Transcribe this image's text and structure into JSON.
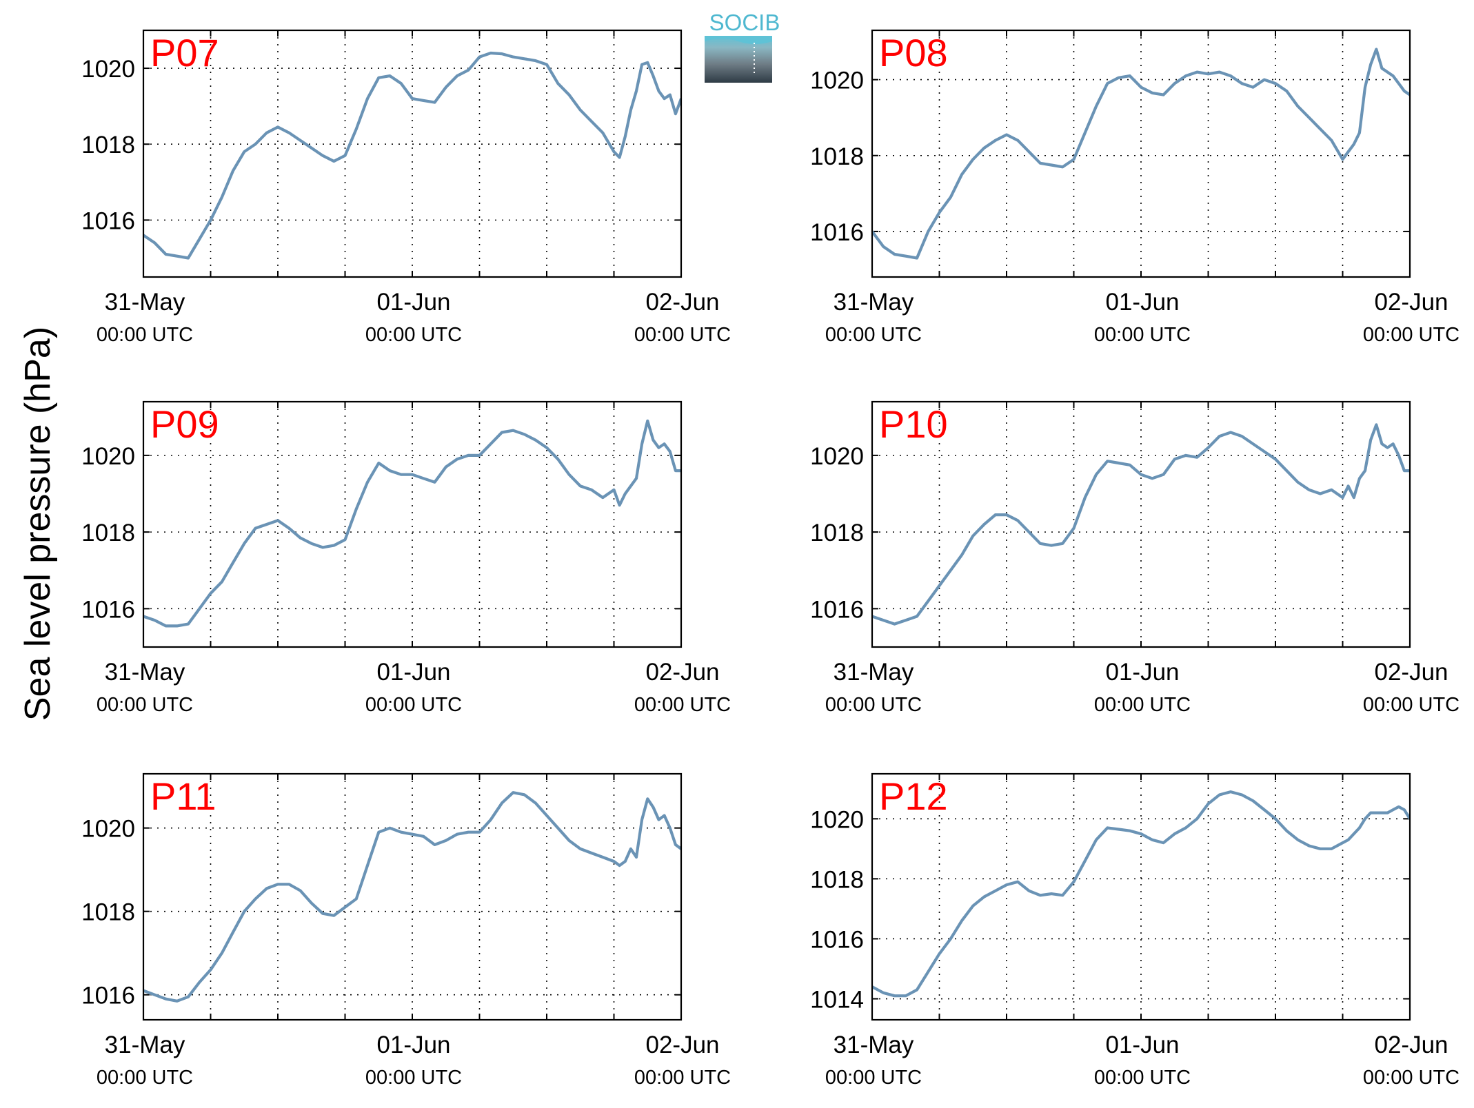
{
  "figure": {
    "ylabel": "Sea level pressure (hPa)",
    "logo_text": "SOCIB",
    "line_color": "#6a93b5",
    "label_color": "#ff0000"
  },
  "chart_data": [
    {
      "type": "line",
      "title": "P07",
      "ylim": [
        1014.5,
        1021
      ],
      "yticks": [
        1016,
        1018,
        1020
      ],
      "xlim": [
        0,
        48
      ],
      "xticks": [
        0,
        24,
        48
      ],
      "xticklabels": [
        [
          "31-May",
          "00:00 UTC"
        ],
        [
          "01-Jun",
          "00:00 UTC"
        ],
        [
          "02-Jun",
          "00:00 UTC"
        ]
      ],
      "grid": true,
      "series": [
        {
          "x": [
            0,
            1,
            2,
            3,
            4,
            5,
            6,
            7,
            8,
            9,
            10,
            11,
            12,
            13,
            14,
            15,
            16,
            17,
            18,
            19,
            20,
            21,
            22,
            23,
            24,
            25,
            26,
            27,
            28,
            29,
            30,
            31,
            32,
            33,
            34,
            35,
            36,
            37,
            38,
            39,
            40,
            41,
            42,
            42.5,
            43,
            43.5,
            44,
            44.5,
            45,
            45.5,
            46,
            46.5,
            47,
            47.5,
            48
          ],
          "y": [
            1015.6,
            1015.4,
            1015.1,
            1015.05,
            1015.0,
            1015.5,
            1016.0,
            1016.6,
            1017.3,
            1017.8,
            1018.0,
            1018.3,
            1018.45,
            1018.3,
            1018.1,
            1017.9,
            1017.7,
            1017.55,
            1017.7,
            1018.4,
            1019.2,
            1019.75,
            1019.8,
            1019.6,
            1019.2,
            1019.15,
            1019.1,
            1019.5,
            1019.8,
            1019.95,
            1020.3,
            1020.4,
            1020.38,
            1020.3,
            1020.25,
            1020.2,
            1020.1,
            1019.6,
            1019.3,
            1018.9,
            1018.6,
            1018.3,
            1017.8,
            1017.65,
            1018.2,
            1018.9,
            1019.4,
            1020.1,
            1020.15,
            1019.8,
            1019.4,
            1019.2,
            1019.3,
            1018.8,
            1019.2
          ]
        }
      ]
    },
    {
      "type": "line",
      "title": "P08",
      "ylim": [
        1014.8,
        1021.3
      ],
      "yticks": [
        1016,
        1018,
        1020
      ],
      "xlim": [
        0,
        48
      ],
      "xticks": [
        0,
        24,
        48
      ],
      "xticklabels": [
        [
          "31-May",
          "00:00 UTC"
        ],
        [
          "01-Jun",
          "00:00 UTC"
        ],
        [
          "02-Jun",
          "00:00 UTC"
        ]
      ],
      "grid": true,
      "series": [
        {
          "x": [
            0,
            1,
            2,
            3,
            4,
            5,
            6,
            7,
            8,
            9,
            10,
            11,
            12,
            13,
            14,
            15,
            16,
            17,
            18,
            19,
            20,
            21,
            22,
            23,
            24,
            25,
            26,
            27,
            28,
            29,
            30,
            31,
            32,
            33,
            34,
            35,
            36,
            37,
            38,
            39,
            40,
            41,
            42,
            42.5,
            43,
            43.5,
            44,
            44.5,
            45,
            45.5,
            46,
            46.5,
            47,
            47.5,
            48
          ],
          "y": [
            1016.0,
            1015.6,
            1015.4,
            1015.35,
            1015.3,
            1016.0,
            1016.5,
            1016.9,
            1017.5,
            1017.9,
            1018.2,
            1018.4,
            1018.55,
            1018.4,
            1018.1,
            1017.8,
            1017.75,
            1017.7,
            1017.9,
            1018.6,
            1019.3,
            1019.9,
            1020.05,
            1020.1,
            1019.8,
            1019.65,
            1019.6,
            1019.9,
            1020.1,
            1020.2,
            1020.15,
            1020.2,
            1020.1,
            1019.9,
            1019.8,
            1020.0,
            1019.9,
            1019.7,
            1019.3,
            1019.0,
            1018.7,
            1018.4,
            1017.9,
            1018.1,
            1018.3,
            1018.6,
            1019.8,
            1020.4,
            1020.8,
            1020.3,
            1020.2,
            1020.1,
            1019.9,
            1019.7,
            1019.6
          ]
        }
      ]
    },
    {
      "type": "line",
      "title": "P09",
      "ylim": [
        1015.0,
        1021.4
      ],
      "yticks": [
        1016,
        1018,
        1020
      ],
      "xlim": [
        0,
        48
      ],
      "xticks": [
        0,
        24,
        48
      ],
      "xticklabels": [
        [
          "31-May",
          "00:00 UTC"
        ],
        [
          "01-Jun",
          "00:00 UTC"
        ],
        [
          "02-Jun",
          "00:00 UTC"
        ]
      ],
      "grid": true,
      "series": [
        {
          "x": [
            0,
            1,
            2,
            3,
            4,
            5,
            6,
            7,
            8,
            9,
            10,
            11,
            12,
            13,
            14,
            15,
            16,
            17,
            18,
            19,
            20,
            21,
            22,
            23,
            24,
            25,
            26,
            27,
            28,
            29,
            30,
            31,
            32,
            33,
            34,
            35,
            36,
            37,
            38,
            39,
            40,
            41,
            42,
            42.5,
            43,
            43.5,
            44,
            44.5,
            45,
            45.5,
            46,
            46.5,
            47,
            47.5,
            48
          ],
          "y": [
            1015.8,
            1015.7,
            1015.55,
            1015.55,
            1015.6,
            1016.0,
            1016.4,
            1016.7,
            1017.2,
            1017.7,
            1018.1,
            1018.2,
            1018.3,
            1018.1,
            1017.85,
            1017.7,
            1017.6,
            1017.65,
            1017.8,
            1018.6,
            1019.3,
            1019.8,
            1019.6,
            1019.5,
            1019.5,
            1019.4,
            1019.3,
            1019.7,
            1019.9,
            1020.0,
            1020.0,
            1020.3,
            1020.6,
            1020.65,
            1020.55,
            1020.4,
            1020.2,
            1019.9,
            1019.5,
            1019.2,
            1019.1,
            1018.9,
            1019.1,
            1018.7,
            1019.0,
            1019.2,
            1019.4,
            1020.3,
            1020.9,
            1020.4,
            1020.2,
            1020.3,
            1020.1,
            1019.6,
            1019.6
          ]
        }
      ]
    },
    {
      "type": "line",
      "title": "P10",
      "ylim": [
        1015.0,
        1021.4
      ],
      "yticks": [
        1016,
        1018,
        1020
      ],
      "xlim": [
        0,
        48
      ],
      "xticks": [
        0,
        24,
        48
      ],
      "xticklabels": [
        [
          "31-May",
          "00:00 UTC"
        ],
        [
          "01-Jun",
          "00:00 UTC"
        ],
        [
          "02-Jun",
          "00:00 UTC"
        ]
      ],
      "grid": true,
      "series": [
        {
          "x": [
            0,
            1,
            2,
            3,
            4,
            5,
            6,
            7,
            8,
            9,
            10,
            11,
            12,
            13,
            14,
            15,
            16,
            17,
            18,
            19,
            20,
            21,
            22,
            23,
            24,
            25,
            26,
            27,
            28,
            29,
            30,
            31,
            32,
            33,
            34,
            35,
            36,
            37,
            38,
            39,
            40,
            41,
            42,
            42.5,
            43,
            43.5,
            44,
            44.5,
            45,
            45.5,
            46,
            46.5,
            47,
            47.5,
            48
          ],
          "y": [
            1015.8,
            1015.7,
            1015.6,
            1015.7,
            1015.8,
            1016.2,
            1016.6,
            1017.0,
            1017.4,
            1017.9,
            1018.2,
            1018.45,
            1018.45,
            1018.3,
            1018.0,
            1017.7,
            1017.65,
            1017.7,
            1018.1,
            1018.9,
            1019.5,
            1019.85,
            1019.8,
            1019.75,
            1019.5,
            1019.4,
            1019.5,
            1019.9,
            1020.0,
            1019.95,
            1020.2,
            1020.5,
            1020.6,
            1020.5,
            1020.3,
            1020.1,
            1019.9,
            1019.6,
            1019.3,
            1019.1,
            1019.0,
            1019.1,
            1018.9,
            1019.2,
            1018.9,
            1019.4,
            1019.6,
            1020.4,
            1020.8,
            1020.3,
            1020.2,
            1020.3,
            1020.0,
            1019.6,
            1019.6
          ]
        }
      ]
    },
    {
      "type": "line",
      "title": "P11",
      "ylim": [
        1015.4,
        1021.3
      ],
      "yticks": [
        1016,
        1018,
        1020
      ],
      "xlim": [
        0,
        48
      ],
      "xticks": [
        0,
        24,
        48
      ],
      "xticklabels": [
        [
          "31-May",
          "00:00 UTC"
        ],
        [
          "01-Jun",
          "00:00 UTC"
        ],
        [
          "02-Jun",
          "00:00 UTC"
        ]
      ],
      "grid": true,
      "series": [
        {
          "x": [
            0,
            1,
            2,
            3,
            4,
            5,
            6,
            7,
            8,
            9,
            10,
            11,
            12,
            13,
            14,
            15,
            16,
            17,
            18,
            19,
            20,
            21,
            22,
            23,
            24,
            25,
            26,
            27,
            28,
            29,
            30,
            31,
            32,
            33,
            34,
            35,
            36,
            37,
            38,
            39,
            40,
            41,
            42,
            42.5,
            43,
            43.5,
            44,
            44.5,
            45,
            45.5,
            46,
            46.5,
            47,
            47.5,
            48
          ],
          "y": [
            1016.1,
            1016.0,
            1015.9,
            1015.85,
            1015.95,
            1016.3,
            1016.6,
            1017.0,
            1017.5,
            1018.0,
            1018.3,
            1018.55,
            1018.65,
            1018.65,
            1018.5,
            1018.2,
            1017.95,
            1017.9,
            1018.1,
            1018.3,
            1019.1,
            1019.9,
            1020.0,
            1019.9,
            1019.85,
            1019.8,
            1019.6,
            1019.7,
            1019.85,
            1019.9,
            1019.9,
            1020.2,
            1020.6,
            1020.85,
            1020.8,
            1020.6,
            1020.3,
            1020.0,
            1019.7,
            1019.5,
            1019.4,
            1019.3,
            1019.2,
            1019.1,
            1019.2,
            1019.5,
            1019.3,
            1020.2,
            1020.7,
            1020.5,
            1020.2,
            1020.3,
            1020.0,
            1019.6,
            1019.5
          ]
        }
      ]
    },
    {
      "type": "line",
      "title": "P12",
      "ylim": [
        1013.3,
        1021.5
      ],
      "yticks": [
        1014,
        1016,
        1018,
        1020
      ],
      "xlim": [
        0,
        48
      ],
      "xticks": [
        0,
        24,
        48
      ],
      "xticklabels": [
        [
          "31-May",
          "00:00 UTC"
        ],
        [
          "01-Jun",
          "00:00 UTC"
        ],
        [
          "02-Jun",
          "00:00 UTC"
        ]
      ],
      "grid": true,
      "series": [
        {
          "x": [
            0,
            1,
            2,
            3,
            4,
            5,
            6,
            7,
            8,
            9,
            10,
            11,
            12,
            13,
            14,
            15,
            16,
            17,
            18,
            19,
            20,
            21,
            22,
            23,
            24,
            25,
            26,
            27,
            28,
            29,
            30,
            31,
            32,
            33,
            34,
            35,
            36,
            37,
            38,
            39,
            40,
            41,
            42,
            42.5,
            43,
            43.5,
            44,
            44.5,
            45,
            45.5,
            46,
            46.5,
            47,
            47.5,
            48
          ],
          "y": [
            1014.4,
            1014.2,
            1014.1,
            1014.1,
            1014.3,
            1014.9,
            1015.5,
            1016.0,
            1016.6,
            1017.1,
            1017.4,
            1017.6,
            1017.8,
            1017.9,
            1017.6,
            1017.45,
            1017.5,
            1017.45,
            1017.9,
            1018.6,
            1019.3,
            1019.7,
            1019.65,
            1019.6,
            1019.5,
            1019.3,
            1019.2,
            1019.5,
            1019.7,
            1020.0,
            1020.5,
            1020.8,
            1020.9,
            1020.8,
            1020.6,
            1020.3,
            1020.0,
            1019.6,
            1019.3,
            1019.1,
            1019.0,
            1019.0,
            1019.2,
            1019.3,
            1019.5,
            1019.7,
            1020.0,
            1020.2,
            1020.2,
            1020.2,
            1020.2,
            1020.3,
            1020.4,
            1020.3,
            1020.0
          ]
        }
      ]
    }
  ]
}
